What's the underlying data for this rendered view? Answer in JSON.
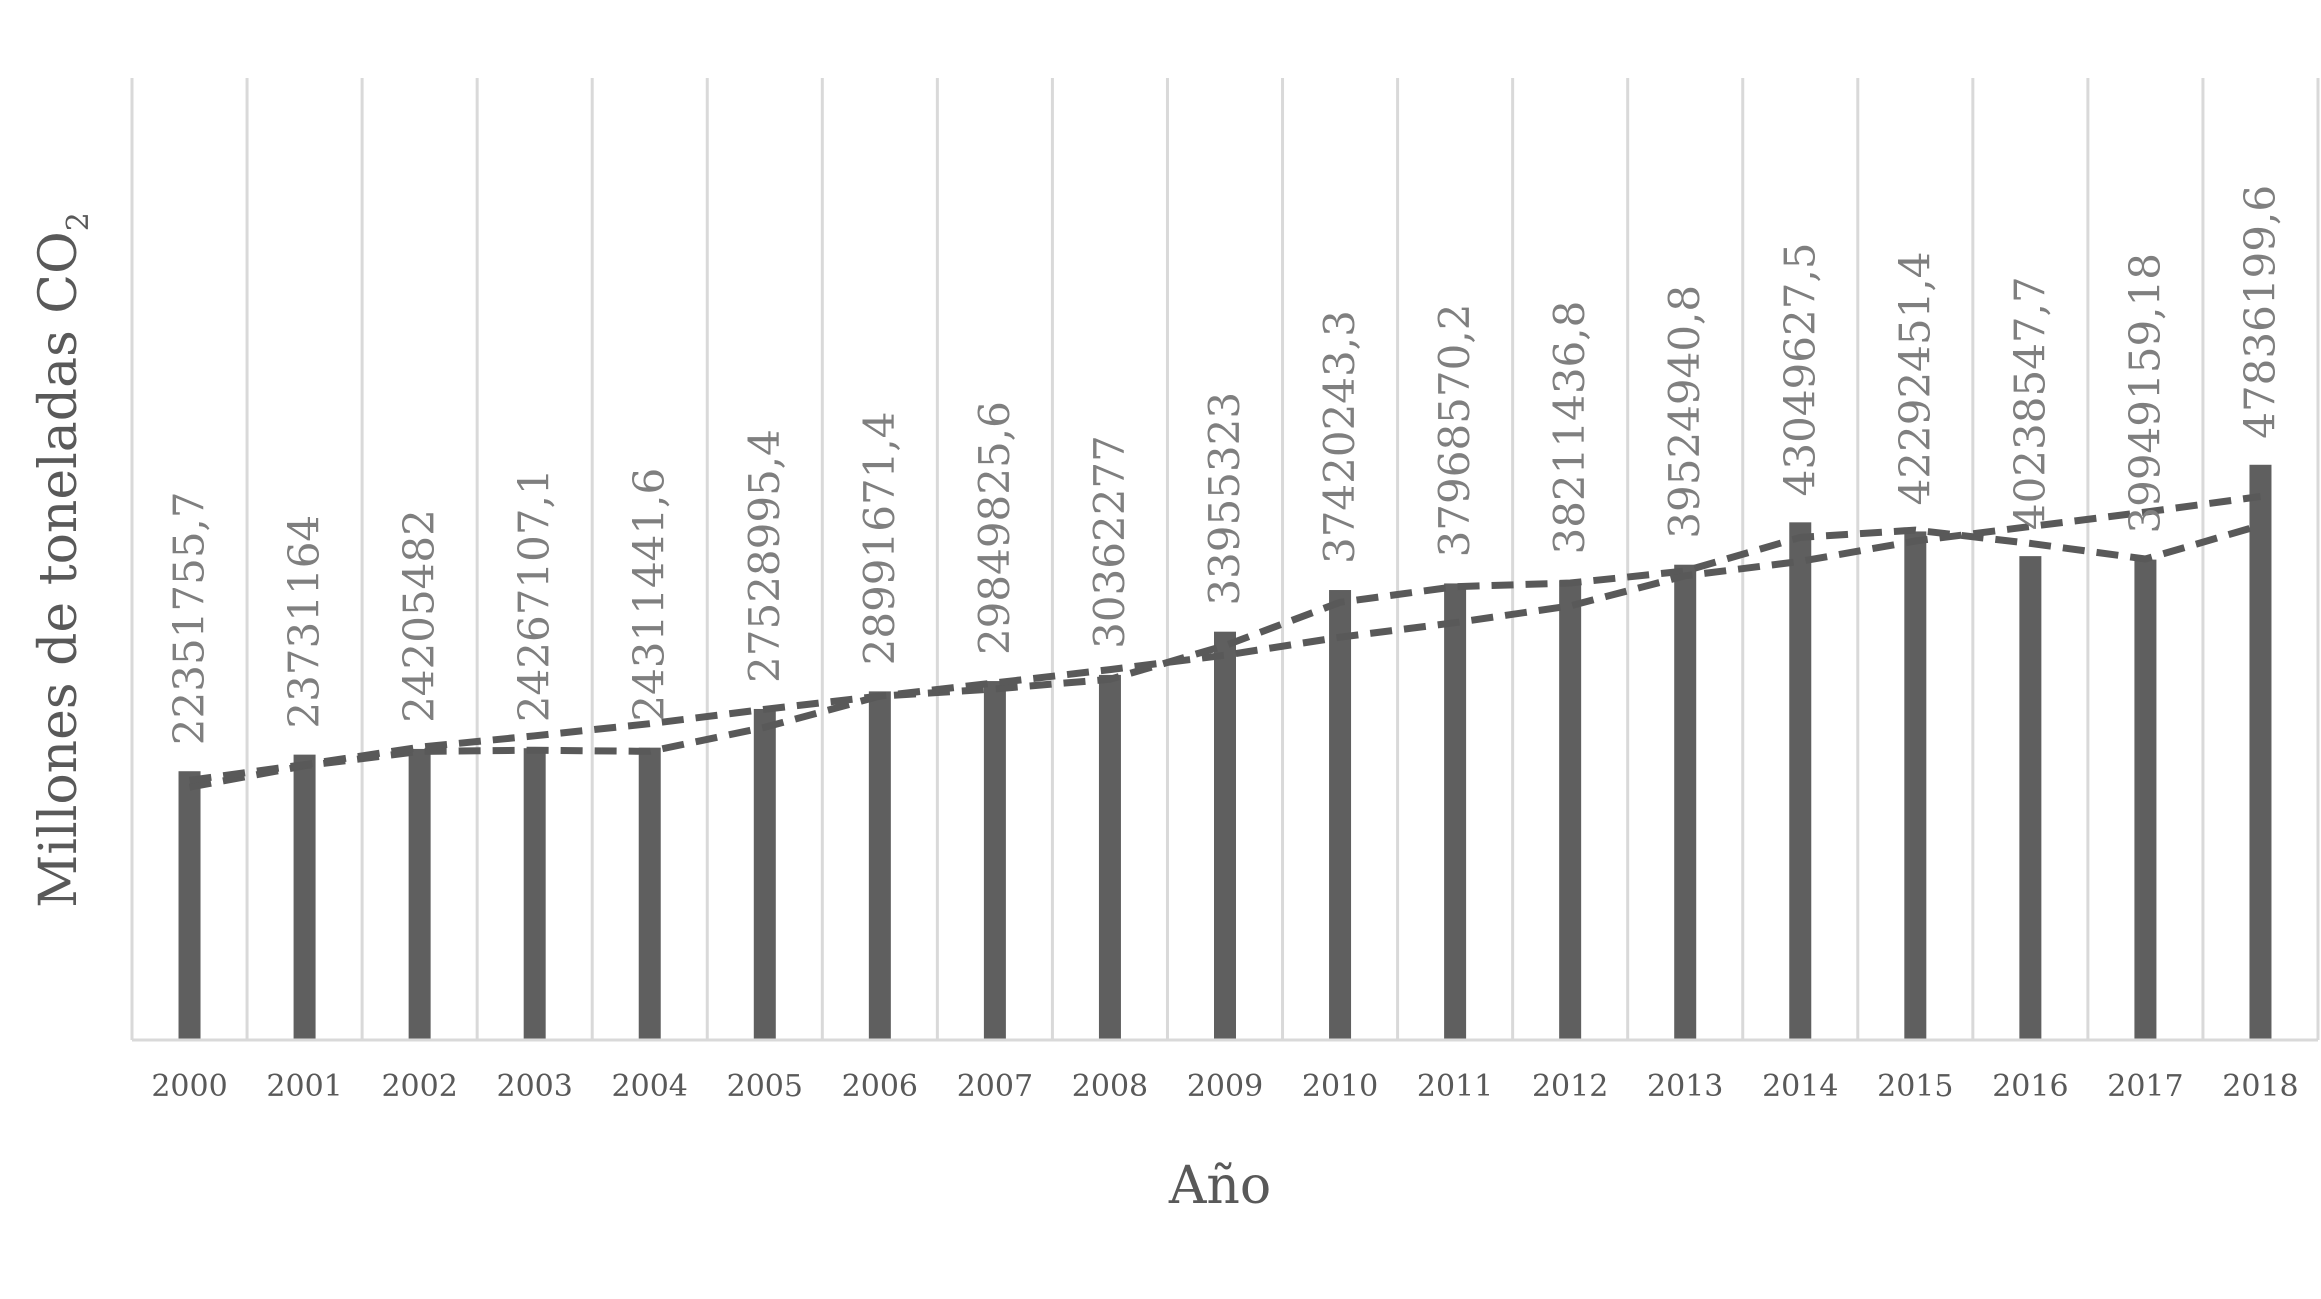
{
  "chart_data": {
    "type": "bar",
    "title": "",
    "xlabel": "Año",
    "ylabel": "Millones de toneladas CO",
    "ylabel_subscript": "2",
    "categories": [
      "2000",
      "2001",
      "2002",
      "2003",
      "2004",
      "2005",
      "2006",
      "2007",
      "2008",
      "2009",
      "2010",
      "2011",
      "2012",
      "2013",
      "2014",
      "2015",
      "2016",
      "2017",
      "2018"
    ],
    "values": [
      22351755.7,
      23731164,
      24205482,
      24267107.1,
      24311441.6,
      27528995.4,
      28991671.4,
      29849825.6,
      30362277,
      33955323,
      37420243.3,
      37968570.2,
      38211436.8,
      39524940.8,
      43049627.5,
      42292451.4,
      40238547.7,
      39949159.18,
      47836199.6
    ],
    "data_labels": [
      "22351755,7",
      "23731164",
      "24205482",
      "24267107,1",
      "24311441,6",
      "27528995,4",
      "28991671,4",
      "29849825,6",
      "30362277",
      "33955323",
      "37420243,3",
      "37968570,2",
      "38211436,8",
      "39524940,8",
      "43049627,5",
      "42292451,4",
      "40238547,7",
      "39949159,18",
      "47836199,6"
    ],
    "lines": [
      {
        "style": "dashed",
        "kind": "moving-average",
        "values": [
          null,
          22800000,
          24000000,
          24100000,
          24000000,
          26000000,
          28600000,
          29200000,
          30000000,
          32800000,
          36400000,
          37700000,
          38000000,
          39000000,
          41800000,
          42400000,
          41300000,
          40000000,
          42800000
        ]
      },
      {
        "style": "dashed",
        "kind": "linear-trend",
        "values": [
          21600000,
          22900000,
          24350000,
          25300000,
          26300000,
          27500000,
          28600000,
          29700000,
          30800000,
          32000000,
          33500000,
          34700000,
          36100000,
          38600000,
          39800000,
          41500000,
          42700000,
          43900000,
          45200000
        ]
      }
    ],
    "ylim": [
      0,
      80000000
    ],
    "grid": "vertical",
    "legend": "none",
    "colors": {
      "bar": "#5f5f5f",
      "line": "#595959",
      "grid": "#d9d9d9",
      "axis": "#d9d9d9",
      "text": "#595959",
      "data_label": "#7f7f7f"
    }
  }
}
